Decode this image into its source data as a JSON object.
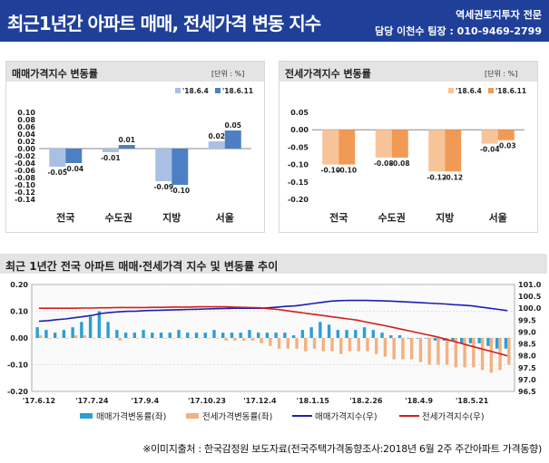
{
  "header": {
    "title": "최근1년간 아파트 매매, 전세가격 변동 지수",
    "org": "역세권토지투자 전문",
    "contact": "담당 이천수 팀장 : 010-9469-2799"
  },
  "footer": {
    "source": "※이미지출처 : 한국감정원 보도자료(전국주택가격동향조사:2018년 6월 2주 주간아파트 가격동향)"
  },
  "chart_data": [
    {
      "type": "bar",
      "title": "매매가격지수 변동률",
      "unit": "[단위 : %]",
      "categories": [
        "전국",
        "수도권",
        "지방",
        "서울"
      ],
      "series": [
        {
          "name": "'18.6.4",
          "values": [
            -0.05,
            -0.01,
            -0.09,
            0.02
          ],
          "color": "#a9c0e4"
        },
        {
          "name": "'18.6.11",
          "values": [
            -0.04,
            0.01,
            -0.1,
            0.05
          ],
          "color": "#4d7fc4"
        }
      ],
      "ylim": [
        -0.14,
        0.1
      ],
      "yticks": [
        "0.10",
        "0.08",
        "0.06",
        "0.04",
        "0.02",
        "0.00",
        "-0.02",
        "-0.04",
        "-0.06",
        "-0.08",
        "-0.10",
        "-0.12",
        "-0.14"
      ],
      "data_labels": [
        [
          "-0.05",
          "-0.01",
          "-0.09",
          "0.02"
        ],
        [
          "-0.04",
          "0.01",
          "-0.10",
          "0.05"
        ]
      ],
      "legend": "top-right"
    },
    {
      "type": "bar",
      "title": "전세가격지수 변동률",
      "unit": "[단위 : %]",
      "categories": [
        "전국",
        "수도권",
        "지방",
        "서울"
      ],
      "series": [
        {
          "name": "'18.6.4",
          "values": [
            -0.1,
            -0.08,
            -0.12,
            -0.04
          ],
          "color": "#f7c49a"
        },
        {
          "name": "'18.6.11",
          "values": [
            -0.1,
            -0.08,
            -0.12,
            -0.03
          ],
          "color": "#f19a55"
        }
      ],
      "ylim": [
        -0.2,
        0.05
      ],
      "yticks": [
        "0.05",
        "0.00",
        "-0.05",
        "-0.10",
        "-0.15",
        "-0.20"
      ],
      "data_labels": [
        [
          "-0.10",
          "-0.08",
          "-0.12",
          "-0.04"
        ],
        [
          "-0.10",
          "-0.08",
          "-0.12",
          "-0.03"
        ]
      ],
      "legend": "top-right"
    },
    {
      "type": "bar",
      "title": "최근 1년간 전국 아파트 매매·전세가격 지수 및 변동률 추이",
      "ylim_left": [
        -0.2,
        0.2
      ],
      "ylim_right": [
        96.5,
        101.0
      ],
      "yticks_left": [
        "0.20",
        "0.10",
        "0.00",
        "-0.10",
        "-0.20"
      ],
      "yticks_right": [
        "101.0",
        "100.5",
        "100.0",
        "99.5",
        "99.0",
        "98.5",
        "98.0",
        "97.5",
        "97.0",
        "96.5"
      ],
      "x_tick_labels": [
        "'17.6.12",
        "'17.7.24",
        "'17.9.4",
        "'17.10.23",
        "'17.12.4",
        "'18.1.15",
        "'18.2.26",
        "'18.4.9",
        "'18.5.21"
      ],
      "x_tick_index": [
        0,
        6,
        12,
        19,
        25,
        31,
        37,
        43,
        49
      ],
      "grid": true,
      "legend": "bottom",
      "series": [
        {
          "name": "매매가격변동률(좌)",
          "kind": "bar",
          "axis": "left",
          "color": "#2a9fd6",
          "values": [
            0.04,
            0.03,
            0.02,
            0.03,
            0.04,
            0.06,
            0.08,
            0.1,
            0.06,
            0.03,
            0.02,
            0.02,
            0.03,
            0.02,
            0.02,
            0.02,
            0.03,
            0.02,
            0.02,
            0.02,
            0.03,
            0.02,
            0.02,
            0.02,
            0.03,
            0.02,
            0.02,
            0.02,
            0.02,
            0.01,
            0.03,
            0.04,
            0.06,
            0.05,
            0.03,
            0.03,
            0.03,
            0.04,
            0.03,
            0.02,
            0.01,
            0.01,
            0.0,
            0.0,
            0.0,
            -0.01,
            -0.01,
            -0.01,
            -0.02,
            -0.02,
            -0.02,
            -0.03,
            -0.04,
            -0.04
          ]
        },
        {
          "name": "전세가격변동률(좌)",
          "kind": "bar",
          "axis": "left",
          "color": "#f4b07f",
          "values": [
            0.01,
            0.0,
            0.0,
            0.0,
            0.01,
            0.01,
            0.0,
            0.0,
            0.0,
            -0.01,
            0.0,
            0.0,
            0.0,
            0.0,
            0.0,
            0.0,
            0.0,
            0.0,
            0.0,
            0.0,
            0.0,
            -0.01,
            -0.01,
            -0.01,
            -0.01,
            -0.02,
            -0.03,
            -0.04,
            -0.04,
            -0.04,
            -0.05,
            -0.04,
            -0.05,
            -0.05,
            -0.06,
            -0.05,
            -0.05,
            -0.05,
            -0.06,
            -0.07,
            -0.08,
            -0.08,
            -0.08,
            -0.09,
            -0.1,
            -0.1,
            -0.1,
            -0.11,
            -0.11,
            -0.11,
            -0.12,
            -0.13,
            -0.12,
            -0.1
          ]
        },
        {
          "name": "매매가격지수(우)",
          "kind": "line",
          "axis": "right",
          "color": "#1e1eb4",
          "values": [
            99.45,
            99.48,
            99.52,
            99.55,
            99.6,
            99.65,
            99.7,
            99.78,
            99.82,
            99.85,
            99.87,
            99.88,
            99.9,
            99.91,
            99.92,
            99.93,
            99.94,
            99.95,
            99.96,
            99.97,
            99.98,
            99.99,
            100.0,
            100.0,
            100.0,
            100.0,
            100.02,
            100.05,
            100.08,
            100.1,
            100.15,
            100.2,
            100.25,
            100.3,
            100.32,
            100.33,
            100.33,
            100.33,
            100.32,
            100.31,
            100.3,
            100.28,
            100.26,
            100.24,
            100.22,
            100.2,
            100.18,
            100.15,
            100.13,
            100.1,
            100.05,
            100.0,
            99.95,
            99.9
          ]
        },
        {
          "name": "전세가격지수(우)",
          "kind": "line",
          "axis": "right",
          "color": "#d21e1e",
          "values": [
            100.0,
            100.0,
            100.0,
            100.0,
            100.0,
            100.01,
            100.01,
            100.02,
            100.02,
            100.03,
            100.03,
            100.03,
            100.03,
            100.04,
            100.04,
            100.05,
            100.05,
            100.05,
            100.06,
            100.06,
            100.06,
            100.06,
            100.05,
            100.04,
            100.03,
            100.02,
            99.98,
            99.95,
            99.9,
            99.85,
            99.8,
            99.75,
            99.7,
            99.65,
            99.6,
            99.55,
            99.5,
            99.42,
            99.35,
            99.28,
            99.2,
            99.12,
            99.04,
            98.96,
            98.88,
            98.8,
            98.7,
            98.6,
            98.5,
            98.4,
            98.3,
            98.2,
            98.1,
            98.0
          ]
        }
      ]
    }
  ]
}
